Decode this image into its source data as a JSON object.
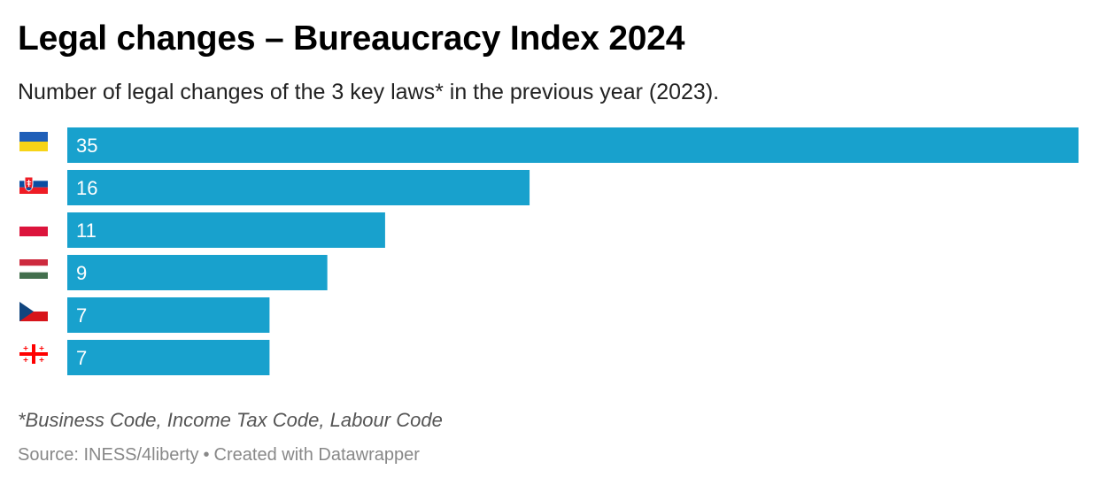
{
  "header": {
    "title": "Legal changes – Bureaucracy Index 2024",
    "subtitle": "Number of legal changes of the 3 key laws* in the previous year (2023)."
  },
  "footer": {
    "notes": "*Business Code, Income Tax Code, Labour Code",
    "source": "Source: INESS/4liberty",
    "separator": "•",
    "credit": "Created with Datawrapper"
  },
  "colors": {
    "bar": "#18a1cd",
    "value_label": "#ffffff"
  },
  "chart_data": {
    "type": "bar",
    "orientation": "horizontal",
    "title": "Legal changes – Bureaucracy Index 2024",
    "subtitle": "Number of legal changes of the 3 key laws* in the previous year (2023).",
    "xlabel": "",
    "ylabel": "",
    "grid": false,
    "legend": "none",
    "xlim": [
      0,
      35
    ],
    "categories": [
      "Ukraine",
      "Slovakia",
      "Poland",
      "Hungary",
      "Czechia",
      "Georgia"
    ],
    "category_icons": [
      "ukraine-flag-icon",
      "slovakia-flag-icon",
      "poland-flag-icon",
      "hungary-flag-icon",
      "czechia-flag-icon",
      "georgia-flag-icon"
    ],
    "values": [
      35,
      16,
      11,
      9,
      7,
      7
    ]
  }
}
